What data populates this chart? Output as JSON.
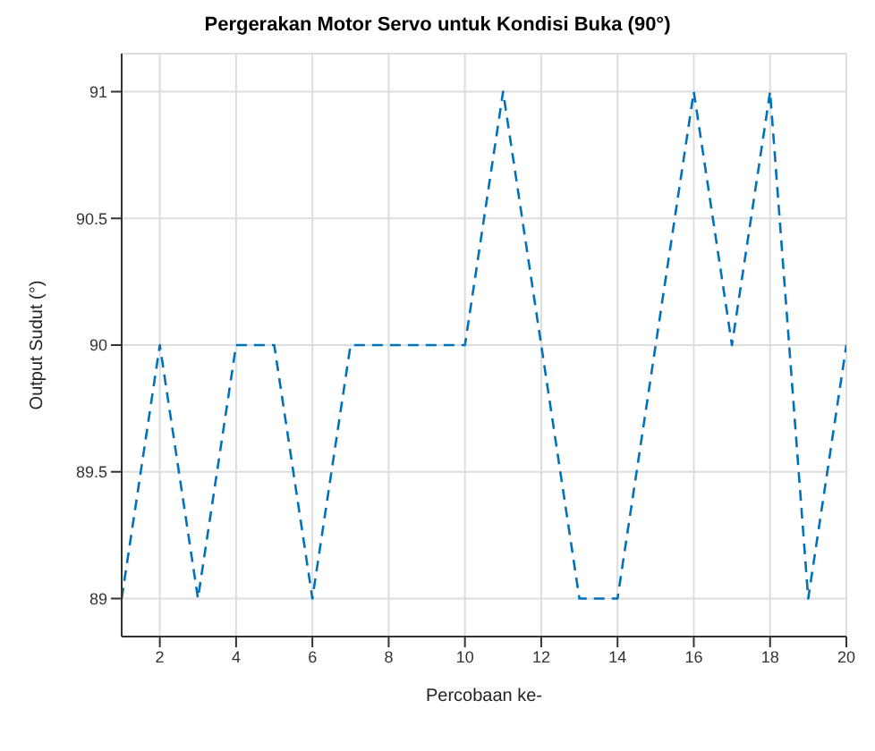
{
  "chart_data": {
    "type": "line",
    "title": "Pergerakan Motor Servo untuk Kondisi Buka (90°)",
    "xlabel": "Percobaan ke-",
    "ylabel": "Output Sudut (°)",
    "x": [
      1,
      2,
      3,
      4,
      5,
      6,
      7,
      8,
      9,
      10,
      11,
      12,
      13,
      14,
      15,
      16,
      17,
      18,
      19,
      20
    ],
    "series": [
      {
        "color": "#0072bd",
        "values": [
          89,
          90,
          89,
          90,
          90,
          89,
          90,
          90,
          90,
          90,
          91,
          90,
          89,
          89,
          90,
          91,
          90,
          91,
          89,
          90
        ]
      }
    ],
    "xlim": [
      1,
      20
    ],
    "xticks": [
      2,
      4,
      6,
      8,
      10,
      12,
      14,
      16,
      18,
      20
    ],
    "ylim": [
      88.85,
      91.15
    ],
    "yticks": [
      89,
      89.5,
      90,
      90.5,
      91
    ],
    "grid": true,
    "line_style": "dashed",
    "marker": "none",
    "legend": false
  }
}
